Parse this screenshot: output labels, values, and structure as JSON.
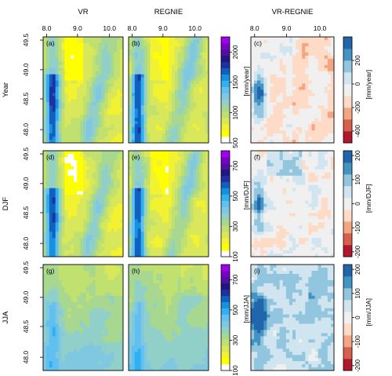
{
  "chart_data": {
    "type": "heatmap",
    "col_titles": [
      "VR",
      "REGNIE",
      "VR-REGNIE"
    ],
    "row_titles": [
      "Year",
      "DJF",
      "JJA"
    ],
    "lon_ticks": [
      "8.0",
      "9.0",
      "10.0"
    ],
    "lat_ticks": [
      "49.5",
      "49.0",
      "48.5",
      "48.0"
    ],
    "panel_labels": [
      "(a)",
      "(b)",
      "(c)",
      "(d)",
      "(e)",
      "(f)",
      "(g)",
      "(h)",
      "(i)"
    ],
    "precip_colorbars": [
      {
        "unit": "[mm/year]",
        "ticks": [
          "500",
          "1000",
          "1500",
          "2000"
        ],
        "range": [
          500,
          2250
        ]
      },
      {
        "unit": "[mm/DJF]",
        "ticks": [
          "100",
          "300",
          "500",
          "700"
        ],
        "range": [
          100,
          800
        ]
      },
      {
        "unit": "[mm/JJA]",
        "ticks": [
          "100",
          "300",
          "500",
          "700"
        ],
        "range": [
          100,
          800
        ]
      }
    ],
    "diff_colorbars": [
      {
        "unit": "[mm/year]",
        "ticks": [
          "200",
          "0",
          "-200",
          "-400"
        ],
        "range": [
          -500,
          400
        ]
      },
      {
        "unit": "[mm/DJF]",
        "ticks": [
          "200",
          "100",
          "0",
          "-100",
          "-200"
        ],
        "range": [
          -220,
          220
        ]
      },
      {
        "unit": "[mm/JJA]",
        "ticks": [
          "200",
          "100",
          "0",
          "-100",
          "-200"
        ],
        "range": [
          -220,
          220
        ]
      }
    ],
    "precip_colors": [
      "#ffffff",
      "#ffff00",
      "#f2f230",
      "#d8e85a",
      "#c0e070",
      "#a8d890",
      "#90d0c8",
      "#80c8e0",
      "#60c0f0",
      "#30b0f0",
      "#1890e0",
      "#1060c0",
      "#2030a0",
      "#201880",
      "#5010a0",
      "#7a00c8",
      "#a000f0"
    ],
    "diff_colors": [
      "#b2182b",
      "#d6604d",
      "#f4a582",
      "#fddbc7",
      "#f0f0f0",
      "#d1e5f0",
      "#92c5de",
      "#4393c3",
      "#2166ac"
    ]
  }
}
